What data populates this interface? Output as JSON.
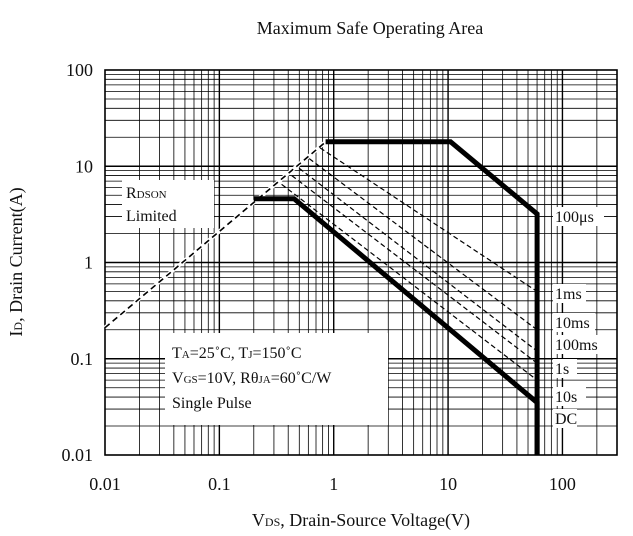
{
  "chart_data": {
    "type": "line",
    "title": "Maximum Safe Operating Area",
    "xlabel": {
      "main": "V",
      "sub": "DS",
      "rest": ", Drain-Source Voltage(V)"
    },
    "ylabel": {
      "main": "I",
      "sub": "D",
      "rest": ", Drain Current(A)"
    },
    "xscale": "log",
    "yscale": "log",
    "xlim": [
      0.01,
      300
    ],
    "ylim": [
      0.01,
      100
    ],
    "xticks": [
      {
        "value": 0.01,
        "label": "0.01"
      },
      {
        "value": 0.1,
        "label": "0.1"
      },
      {
        "value": 1,
        "label": "1"
      },
      {
        "value": 10,
        "label": "10"
      },
      {
        "value": 100,
        "label": "100"
      }
    ],
    "yticks": [
      {
        "value": 0.01,
        "label": "0.01"
      },
      {
        "value": 0.1,
        "label": "0.1"
      },
      {
        "value": 1,
        "label": "1"
      },
      {
        "value": 10,
        "label": "10"
      },
      {
        "value": 100,
        "label": "100"
      }
    ],
    "grid": true,
    "rdson_limit": {
      "style": "dashed",
      "points": [
        [
          0.01,
          0.21
        ],
        [
          0.83,
          17.5
        ]
      ]
    },
    "series": [
      {
        "name": "100μs",
        "style": "solid-bold",
        "points": [
          [
            0.85,
            18
          ],
          [
            10.5,
            18
          ],
          [
            60,
            3.2
          ],
          [
            60,
            0.01
          ]
        ]
      },
      {
        "name": "1ms",
        "style": "dashed",
        "points": [
          [
            0.76,
            15.5
          ],
          [
            60,
            0.5
          ]
        ]
      },
      {
        "name": "10ms",
        "style": "dashed",
        "points": [
          [
            0.61,
            12
          ],
          [
            60,
            0.2
          ]
        ]
      },
      {
        "name": "100ms",
        "style": "dashed",
        "points": [
          [
            0.5,
            9.5
          ],
          [
            60,
            0.12
          ]
        ]
      },
      {
        "name": "1s",
        "style": "dashed",
        "points": [
          [
            0.43,
            8
          ],
          [
            60,
            0.09
          ]
        ]
      },
      {
        "name": "10s",
        "style": "dashed",
        "points": [
          [
            0.35,
            6.5
          ],
          [
            60,
            0.06
          ]
        ]
      },
      {
        "name": "DC",
        "style": "solid-bold",
        "points": [
          [
            0.2,
            4.6
          ],
          [
            0.45,
            4.6
          ],
          [
            60,
            0.035
          ],
          [
            60,
            0.01
          ]
        ]
      }
    ],
    "annotations": {
      "rdson": {
        "main": "R",
        "sub": "DSON",
        "line2": "Limited"
      },
      "conditions": [
        {
          "p1": "T",
          "s1": "A",
          "p2": "=25˚C, T",
          "s2": "J",
          "p3": "=150˚C"
        },
        {
          "p1": "V",
          "s1": "GS",
          "p2": "=10V, Rθ",
          "s2": "JA",
          "p3": "=60˚C/W"
        },
        {
          "p1": "Single Pulse",
          "s1": "",
          "p2": "",
          "s2": "",
          "p3": ""
        }
      ]
    }
  }
}
